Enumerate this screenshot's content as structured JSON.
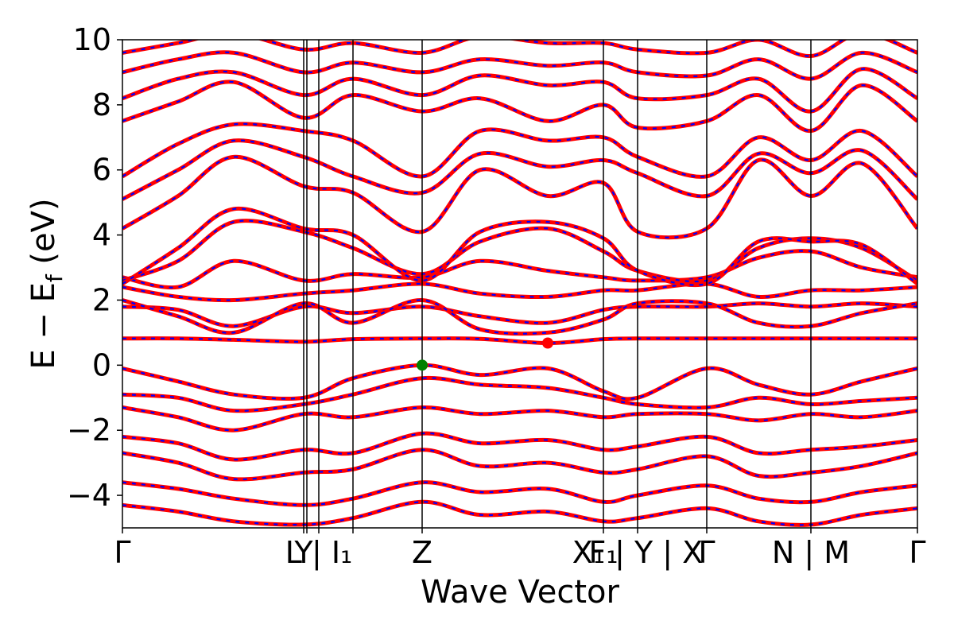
{
  "chart_data": {
    "type": "line",
    "xlabel": "Wave Vector",
    "ylabel": "E − E",
    "ylabel_sub": "f",
    "ylabel_unit": " (eV)",
    "ylim": [
      -5,
      10
    ],
    "yticks": [
      {
        "value": -4,
        "label": "−4"
      },
      {
        "value": -2,
        "label": "−2"
      },
      {
        "value": 0,
        "label": "0"
      },
      {
        "value": 2,
        "label": "2"
      },
      {
        "value": 4,
        "label": "4"
      },
      {
        "value": 6,
        "label": "6"
      },
      {
        "value": 8,
        "label": "8"
      },
      {
        "value": 10,
        "label": "10"
      }
    ],
    "xlim": [
      0,
      1
    ],
    "kpoints": [
      {
        "pos": 0.0,
        "label": "Γ"
      },
      {
        "pos": 0.228,
        "label": "Y"
      },
      {
        "pos": 0.232,
        "label": ""
      },
      {
        "pos": 0.247,
        "label": "L | I₁"
      },
      {
        "pos": 0.29,
        "label": ""
      },
      {
        "pos": 0.377,
        "label": "Z"
      },
      {
        "pos": 0.605,
        "label": "F₁"
      },
      {
        "pos": 0.648,
        "label": "X₁ | Y | X"
      },
      {
        "pos": 0.735,
        "label": "Γ"
      },
      {
        "pos": 0.866,
        "label": "N | M"
      },
      {
        "pos": 1.0,
        "label": "Γ"
      }
    ],
    "markers": [
      {
        "name": "VBM",
        "x": 0.377,
        "y": 0.0,
        "color": "#008000"
      },
      {
        "name": "CBM",
        "x": 0.535,
        "y": 0.68,
        "color": "#ff0000"
      }
    ],
    "line_colors": {
      "primary": "#ff0000",
      "overlay": "#0000ff"
    },
    "bands": [
      {
        "x": [
          0,
          0.07,
          0.14,
          0.228,
          0.29,
          0.377,
          0.45,
          0.535,
          0.605,
          0.648,
          0.735,
          0.8,
          0.866,
          0.93,
          1.0
        ],
        "y": [
          -0.1,
          -0.5,
          -0.9,
          -1.0,
          -0.4,
          0.0,
          -0.3,
          -0.1,
          -0.8,
          -1.0,
          -0.1,
          -0.6,
          -0.9,
          -0.5,
          -0.1
        ]
      },
      {
        "x": [
          0,
          0.07,
          0.14,
          0.228,
          0.29,
          0.377,
          0.45,
          0.535,
          0.605,
          0.648,
          0.735,
          0.8,
          0.866,
          0.93,
          1.0
        ],
        "y": [
          -0.9,
          -1.0,
          -1.4,
          -1.2,
          -0.9,
          -0.4,
          -0.6,
          -0.7,
          -1.0,
          -1.2,
          -1.3,
          -1.0,
          -1.2,
          -1.1,
          -1.0
        ]
      },
      {
        "x": [
          0,
          0.07,
          0.14,
          0.228,
          0.29,
          0.377,
          0.45,
          0.535,
          0.605,
          0.648,
          0.735,
          0.8,
          0.866,
          0.93,
          1.0
        ],
        "y": [
          -1.3,
          -1.6,
          -2.0,
          -1.5,
          -1.6,
          -1.3,
          -1.5,
          -1.4,
          -1.6,
          -1.5,
          -1.5,
          -1.7,
          -1.5,
          -1.6,
          -1.4
        ]
      },
      {
        "x": [
          0,
          0.07,
          0.14,
          0.228,
          0.29,
          0.377,
          0.45,
          0.535,
          0.605,
          0.648,
          0.735,
          0.8,
          0.866,
          0.93,
          1.0
        ],
        "y": [
          -2.2,
          -2.4,
          -2.9,
          -2.6,
          -2.7,
          -2.1,
          -2.4,
          -2.3,
          -2.6,
          -2.5,
          -2.2,
          -2.7,
          -2.6,
          -2.5,
          -2.3
        ]
      },
      {
        "x": [
          0,
          0.07,
          0.14,
          0.228,
          0.29,
          0.377,
          0.45,
          0.535,
          0.605,
          0.648,
          0.735,
          0.8,
          0.866,
          0.93,
          1.0
        ],
        "y": [
          -2.7,
          -3.0,
          -3.5,
          -3.3,
          -3.2,
          -2.6,
          -3.1,
          -3.0,
          -3.3,
          -3.2,
          -2.8,
          -3.4,
          -3.3,
          -3.1,
          -2.7
        ]
      },
      {
        "x": [
          0,
          0.07,
          0.14,
          0.228,
          0.29,
          0.377,
          0.45,
          0.535,
          0.605,
          0.648,
          0.735,
          0.8,
          0.866,
          0.93,
          1.0
        ],
        "y": [
          -3.6,
          -3.8,
          -4.1,
          -4.3,
          -4.1,
          -3.6,
          -3.9,
          -3.8,
          -4.2,
          -4.0,
          -3.7,
          -4.1,
          -4.2,
          -3.9,
          -3.7
        ]
      },
      {
        "x": [
          0,
          0.07,
          0.14,
          0.228,
          0.29,
          0.377,
          0.45,
          0.535,
          0.605,
          0.648,
          0.735,
          0.8,
          0.866,
          0.93,
          1.0
        ],
        "y": [
          -4.3,
          -4.5,
          -4.8,
          -4.9,
          -4.7,
          -4.2,
          -4.6,
          -4.5,
          -4.8,
          -4.7,
          -4.4,
          -4.8,
          -4.9,
          -4.6,
          -4.4
        ]
      },
      {
        "x": [
          0,
          0.07,
          0.14,
          0.228,
          0.29,
          0.377,
          0.45,
          0.535,
          0.605,
          0.648,
          0.735,
          0.8,
          0.866,
          0.93,
          1.0
        ],
        "y": [
          0.82,
          0.82,
          0.78,
          0.72,
          0.8,
          0.82,
          0.81,
          0.68,
          0.8,
          0.82,
          0.82,
          0.82,
          0.82,
          0.82,
          0.82
        ]
      },
      {
        "x": [
          0,
          0.07,
          0.14,
          0.228,
          0.29,
          0.377,
          0.45,
          0.535,
          0.605,
          0.648,
          0.735,
          0.8,
          0.866,
          0.93,
          1.0
        ],
        "y": [
          1.8,
          1.7,
          1.2,
          1.8,
          1.6,
          1.8,
          1.5,
          1.3,
          1.7,
          1.8,
          1.8,
          1.9,
          1.8,
          1.9,
          1.8
        ]
      },
      {
        "x": [
          0,
          0.07,
          0.14,
          0.228,
          0.29,
          0.377,
          0.45,
          0.535,
          0.605,
          0.648,
          0.735,
          0.8,
          0.866,
          0.93,
          1.0
        ],
        "y": [
          2.0,
          1.5,
          1.0,
          1.9,
          1.3,
          2.0,
          1.1,
          1.0,
          1.4,
          1.9,
          1.9,
          1.3,
          1.2,
          1.6,
          1.9
        ]
      },
      {
        "x": [
          0,
          0.07,
          0.14,
          0.228,
          0.29,
          0.377,
          0.45,
          0.535,
          0.605,
          0.648,
          0.735,
          0.8,
          0.866,
          0.93,
          1.0
        ],
        "y": [
          2.4,
          2.1,
          2.0,
          2.2,
          2.3,
          2.5,
          2.2,
          2.1,
          2.3,
          2.3,
          2.5,
          2.1,
          2.3,
          2.3,
          2.4
        ]
      },
      {
        "x": [
          0,
          0.07,
          0.14,
          0.228,
          0.29,
          0.377,
          0.45,
          0.535,
          0.605,
          0.648,
          0.735,
          0.8,
          0.866,
          0.93,
          1.0
        ],
        "y": [
          2.7,
          2.4,
          3.2,
          2.6,
          2.8,
          2.7,
          3.2,
          2.9,
          2.7,
          2.6,
          2.7,
          3.3,
          3.5,
          3.0,
          2.7
        ]
      },
      {
        "x": [
          0,
          0.07,
          0.14,
          0.228,
          0.29,
          0.377,
          0.45,
          0.535,
          0.605,
          0.648,
          0.735,
          0.8,
          0.866,
          0.93,
          1.0
        ],
        "y": [
          2.6,
          3.2,
          4.4,
          4.1,
          3.6,
          2.8,
          3.8,
          4.2,
          3.5,
          2.9,
          2.6,
          3.6,
          3.9,
          3.6,
          2.6
        ]
      },
      {
        "x": [
          0,
          0.07,
          0.14,
          0.228,
          0.29,
          0.377,
          0.45,
          0.535,
          0.605,
          0.648,
          0.735,
          0.8,
          0.866,
          0.93,
          1.0
        ],
        "y": [
          2.5,
          3.6,
          4.8,
          4.2,
          4.0,
          2.6,
          4.1,
          4.4,
          3.9,
          2.9,
          2.5,
          3.8,
          3.8,
          3.7,
          2.5
        ]
      },
      {
        "x": [
          0,
          0.07,
          0.14,
          0.228,
          0.29,
          0.377,
          0.45,
          0.535,
          0.605,
          0.648,
          0.735,
          0.8,
          0.866,
          0.93,
          1.0
        ],
        "y": [
          4.2,
          5.2,
          6.4,
          5.5,
          5.3,
          4.1,
          6.0,
          5.2,
          5.6,
          4.1,
          4.2,
          6.3,
          5.2,
          6.2,
          4.2
        ]
      },
      {
        "x": [
          0,
          0.07,
          0.14,
          0.228,
          0.29,
          0.377,
          0.45,
          0.535,
          0.605,
          0.648,
          0.735,
          0.8,
          0.866,
          0.93,
          1.0
        ],
        "y": [
          5.1,
          6.0,
          6.9,
          6.4,
          5.8,
          5.3,
          6.5,
          6.1,
          6.3,
          5.9,
          5.2,
          6.5,
          5.9,
          6.6,
          5.1
        ]
      },
      {
        "x": [
          0,
          0.07,
          0.14,
          0.228,
          0.29,
          0.377,
          0.45,
          0.535,
          0.605,
          0.648,
          0.735,
          0.8,
          0.866,
          0.93,
          1.0
        ],
        "y": [
          5.8,
          6.8,
          7.4,
          7.2,
          6.9,
          5.8,
          7.2,
          6.9,
          7.0,
          6.4,
          5.8,
          7.0,
          6.3,
          7.2,
          5.8
        ]
      },
      {
        "x": [
          0,
          0.07,
          0.14,
          0.228,
          0.29,
          0.377,
          0.45,
          0.535,
          0.605,
          0.648,
          0.735,
          0.8,
          0.866,
          0.93,
          1.0
        ],
        "y": [
          7.5,
          8.1,
          8.7,
          7.6,
          8.3,
          7.8,
          8.2,
          7.5,
          8.0,
          7.3,
          7.5,
          8.3,
          7.2,
          8.6,
          7.5
        ]
      },
      {
        "x": [
          0,
          0.07,
          0.14,
          0.228,
          0.29,
          0.377,
          0.45,
          0.535,
          0.605,
          0.648,
          0.735,
          0.8,
          0.866,
          0.93,
          1.0
        ],
        "y": [
          8.2,
          8.8,
          9.0,
          8.3,
          8.8,
          8.3,
          8.9,
          8.6,
          8.7,
          8.2,
          8.3,
          8.8,
          7.8,
          9.1,
          8.2
        ]
      },
      {
        "x": [
          0,
          0.07,
          0.14,
          0.228,
          0.29,
          0.377,
          0.45,
          0.535,
          0.605,
          0.648,
          0.735,
          0.8,
          0.866,
          0.93,
          1.0
        ],
        "y": [
          9.0,
          9.4,
          9.6,
          9.0,
          9.3,
          9.0,
          9.4,
          9.2,
          9.3,
          9.0,
          8.9,
          9.4,
          8.8,
          9.6,
          9.0
        ]
      },
      {
        "x": [
          0,
          0.07,
          0.14,
          0.228,
          0.29,
          0.377,
          0.45,
          0.535,
          0.605,
          0.648,
          0.735,
          0.8,
          0.866,
          0.93,
          1.0
        ],
        "y": [
          9.6,
          9.9,
          10.2,
          9.7,
          9.9,
          9.6,
          10.1,
          9.9,
          9.9,
          9.7,
          9.6,
          10.0,
          9.5,
          10.2,
          9.6
        ]
      }
    ]
  }
}
